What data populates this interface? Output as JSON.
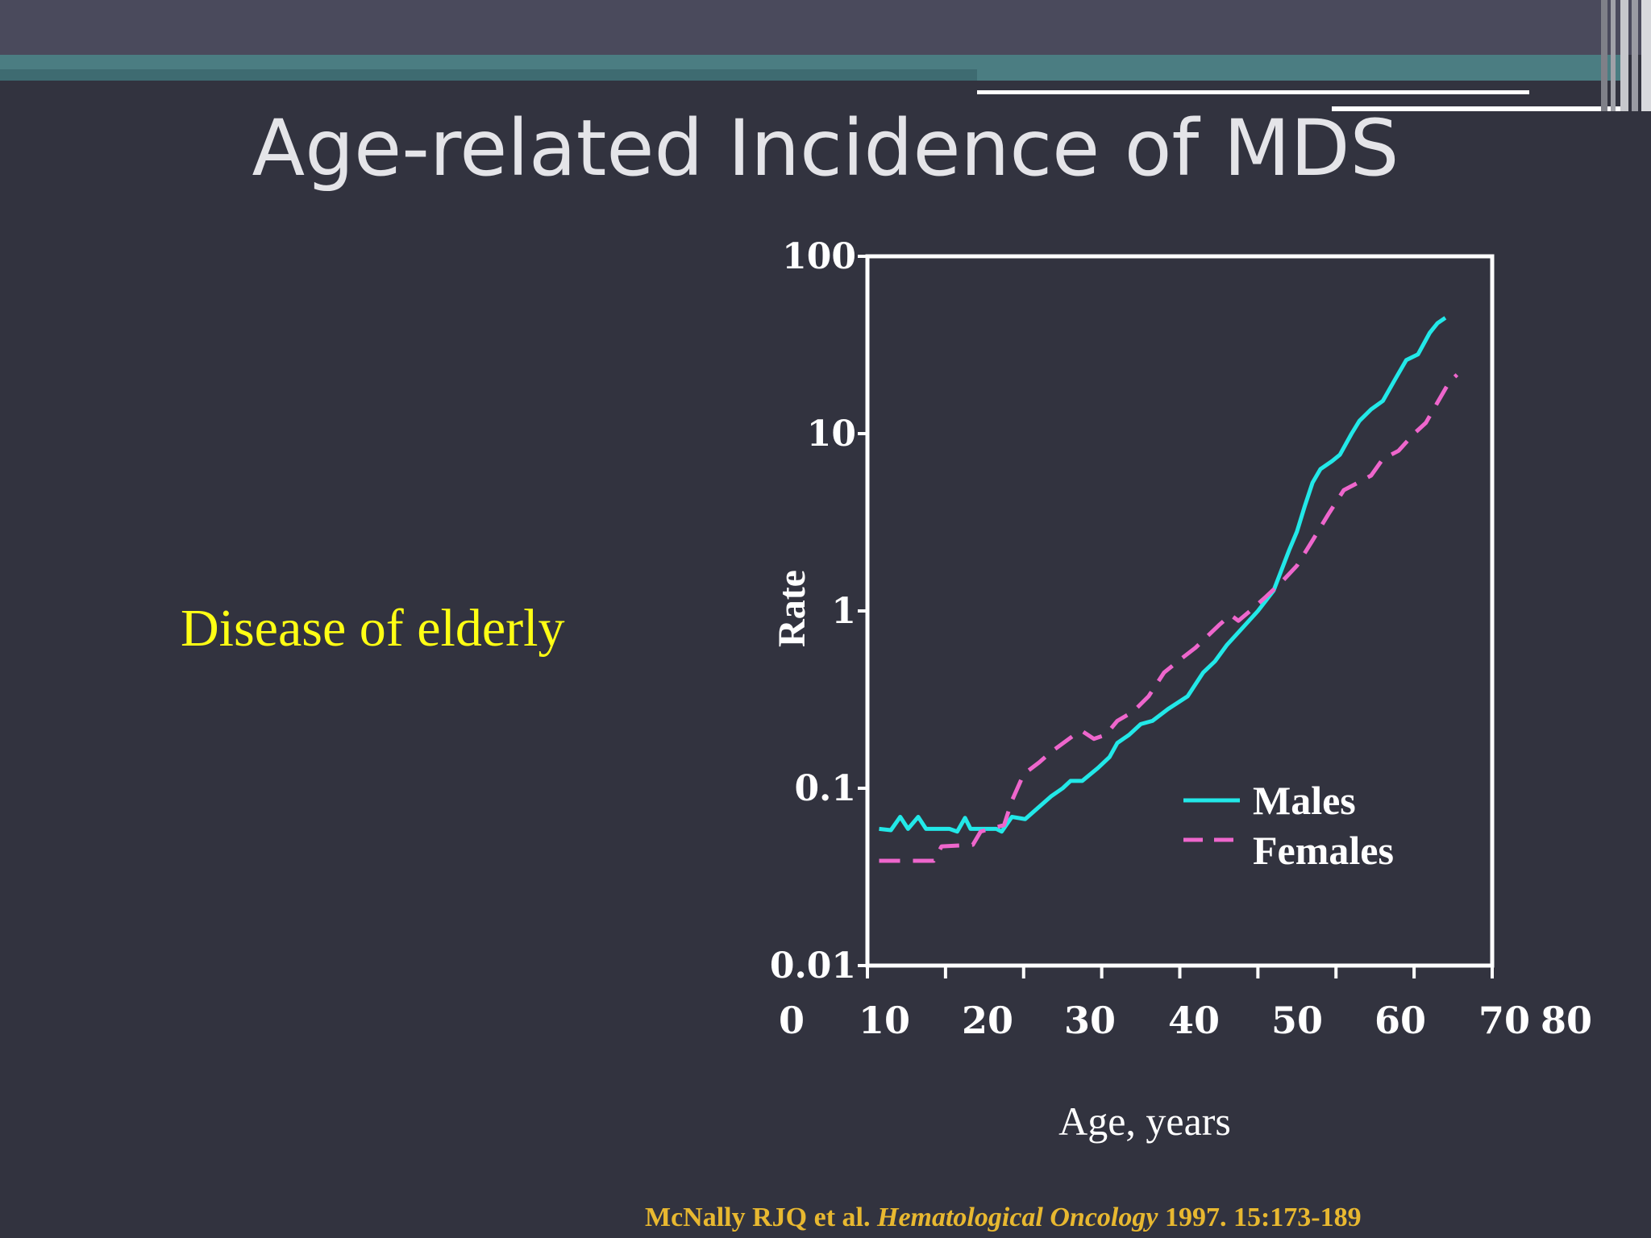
{
  "slide": {
    "title": "Age-related Incidence of MDS",
    "bullet": "Disease of elderly",
    "citation": {
      "authors": "McNally RJQ et al. ",
      "journal": "Hematological Oncology",
      "details": " 1997. 15:173-189"
    }
  },
  "colors": {
    "background": "#32333f",
    "males": "#22e8e8",
    "females": "#ee66cc",
    "bullet": "#ffff14",
    "citation": "#e8b830"
  },
  "chart_data": {
    "type": "line",
    "xlabel": "Age, years",
    "ylabel": "Rate",
    "yscale": "log",
    "ylim": [
      0.01,
      100
    ],
    "xlim": [
      0,
      80
    ],
    "x_tick_labels": [
      "0",
      "10",
      "20",
      "30",
      "40",
      "50",
      "60",
      "70",
      "80"
    ],
    "y_tick_labels": [
      "100",
      "10",
      "1",
      "0.1",
      "0.01"
    ],
    "y_tick_values": [
      100,
      10,
      1,
      0.1,
      0.01
    ],
    "legend": "right-lower-inside",
    "grid": false,
    "series": [
      {
        "name": "Males",
        "style": "solid",
        "points": [
          [
            1.5,
            0.059
          ],
          [
            3.0,
            0.058
          ],
          [
            4.2,
            0.069
          ],
          [
            5.2,
            0.059
          ],
          [
            6.5,
            0.069
          ],
          [
            7.5,
            0.059
          ],
          [
            10.5,
            0.059
          ],
          [
            11.5,
            0.057
          ],
          [
            12.5,
            0.068
          ],
          [
            13.2,
            0.059
          ],
          [
            16.5,
            0.059
          ],
          [
            17.2,
            0.057
          ],
          [
            18.5,
            0.069
          ],
          [
            20.2,
            0.067
          ],
          [
            23.5,
            0.09
          ],
          [
            25.0,
            0.1
          ],
          [
            26.0,
            0.11
          ],
          [
            27.5,
            0.11
          ],
          [
            29.5,
            0.13
          ],
          [
            31.0,
            0.15
          ],
          [
            32.0,
            0.18
          ],
          [
            33.5,
            0.2
          ],
          [
            35.0,
            0.23
          ],
          [
            36.5,
            0.24
          ],
          [
            38.5,
            0.28
          ],
          [
            41.0,
            0.33
          ],
          [
            43.0,
            0.45
          ],
          [
            44.5,
            0.52
          ],
          [
            46.0,
            0.64
          ],
          [
            48.0,
            0.8
          ],
          [
            50.0,
            1.0
          ],
          [
            52.0,
            1.3
          ],
          [
            54.0,
            2.2
          ],
          [
            55.0,
            2.8
          ],
          [
            56.0,
            3.9
          ],
          [
            57.0,
            5.3
          ],
          [
            58.0,
            6.3
          ],
          [
            59.5,
            7.0
          ],
          [
            60.5,
            7.6
          ],
          [
            62.0,
            10.0
          ],
          [
            63.0,
            11.8
          ],
          [
            64.5,
            13.7
          ],
          [
            66.0,
            15.3
          ],
          [
            67.5,
            20.0
          ],
          [
            69.0,
            26.0
          ],
          [
            70.5,
            28.0
          ],
          [
            72.0,
            37.0
          ],
          [
            73.0,
            42.0
          ],
          [
            74.0,
            45.0
          ]
        ]
      },
      {
        "name": "Females",
        "style": "dashed",
        "points": [
          [
            1.5,
            0.039
          ],
          [
            8.5,
            0.039
          ],
          [
            9.5,
            0.047
          ],
          [
            13.5,
            0.048
          ],
          [
            14.5,
            0.057
          ],
          [
            17.5,
            0.062
          ],
          [
            18.5,
            0.085
          ],
          [
            20.0,
            0.12
          ],
          [
            22.0,
            0.14
          ],
          [
            23.5,
            0.16
          ],
          [
            26.5,
            0.2
          ],
          [
            27.5,
            0.21
          ],
          [
            29.0,
            0.19
          ],
          [
            30.5,
            0.2
          ],
          [
            32.0,
            0.24
          ],
          [
            34.0,
            0.27
          ],
          [
            36.0,
            0.33
          ],
          [
            38.0,
            0.45
          ],
          [
            40.0,
            0.53
          ],
          [
            42.0,
            0.62
          ],
          [
            45.0,
            0.83
          ],
          [
            46.5,
            0.95
          ],
          [
            47.5,
            0.88
          ],
          [
            49.0,
            1.0
          ],
          [
            51.0,
            1.2
          ],
          [
            53.0,
            1.45
          ],
          [
            55.0,
            1.8
          ],
          [
            57.0,
            2.5
          ],
          [
            59.0,
            3.5
          ],
          [
            61.0,
            4.8
          ],
          [
            62.5,
            5.2
          ],
          [
            64.5,
            5.8
          ],
          [
            66.0,
            7.2
          ],
          [
            68.0,
            8.0
          ],
          [
            70.0,
            10.0
          ],
          [
            71.5,
            11.5
          ],
          [
            73.0,
            15.0
          ],
          [
            74.5,
            19.5
          ],
          [
            75.5,
            21.5
          ]
        ]
      }
    ]
  }
}
